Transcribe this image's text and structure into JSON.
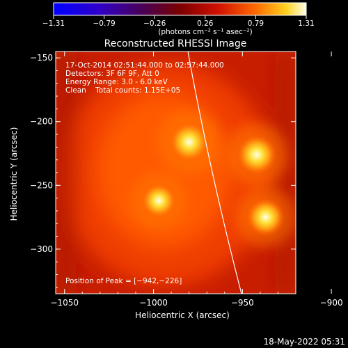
{
  "chart_data": {
    "type": "heatmap",
    "title": "Reconstructed RHESSI Image",
    "xlabel": "Heliocentric X (arcsec)",
    "ylabel": "Heliocentric Y (arcsec)",
    "xlim": [
      -1055,
      -920
    ],
    "ylim": [
      -335,
      -145
    ],
    "x_ticks": [
      -1050,
      -1000,
      -950,
      -900
    ],
    "x_tick_labels": [
      "−1050",
      "−1000",
      "−950",
      "−900"
    ],
    "y_ticks": [
      -150,
      -200,
      -250,
      -300
    ],
    "y_tick_labels": [
      "−150",
      "−200",
      "−250",
      "−300"
    ],
    "colorbar": {
      "min": -1.31,
      "max": 1.31,
      "tick_labels": [
        "−1.31",
        "−0.79",
        "−0.26",
        "0.26",
        "0.79",
        "1.31"
      ],
      "units": "(photons cm⁻² s⁻¹ asec⁻²)"
    },
    "sources": [
      {
        "x": -980,
        "y": -216,
        "peak": 1.31
      },
      {
        "x": -942,
        "y": -226,
        "peak": 1.31
      },
      {
        "x": -997,
        "y": -262,
        "peak": 1.15
      },
      {
        "x": -937,
        "y": -275,
        "peak": 1.25
      }
    ],
    "annotations": {
      "time_range": "17-Oct-2014 02:51:44.000 to 02:57:44.000",
      "detectors": "Detectors: 3F 6F 9F, Att 0",
      "energy": "Energy Range: 3.0 - 6.0 keV",
      "clean": "Clean    Total counts: 1.15E+05",
      "peak_position": "Position of Peak = [−942,−226]"
    },
    "footer": "18-May-2022 05:31"
  }
}
